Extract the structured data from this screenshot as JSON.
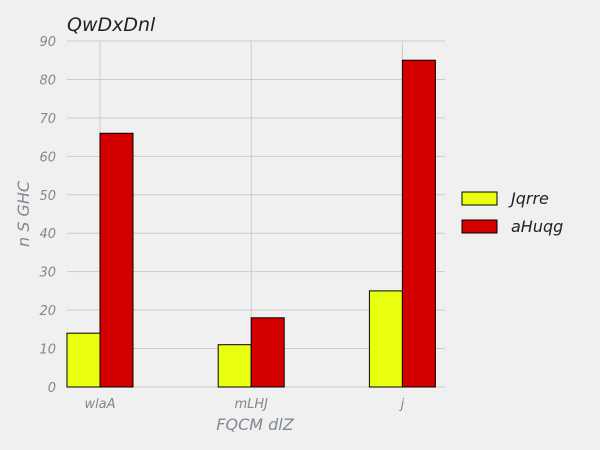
{
  "chart_data": {
    "type": "bar",
    "title": "QwDxDnl",
    "xlabel": "FQCM dlZ",
    "ylabel": "n S GHC",
    "categories": [
      "wlaA",
      "mLHJ",
      "j"
    ],
    "series": [
      {
        "name": "Jqrre",
        "values": [
          14,
          11,
          25
        ],
        "color": "#e8ff10"
      },
      {
        "name": "aHuqg",
        "values": [
          66,
          18,
          85
        ],
        "color": "#d40000"
      }
    ],
    "ylim": [
      0,
      90
    ],
    "yticks": [
      "0",
      "10",
      "20",
      "30",
      "40",
      "50",
      "60",
      "70",
      "80",
      "90"
    ],
    "grid": true,
    "legend": "right"
  }
}
